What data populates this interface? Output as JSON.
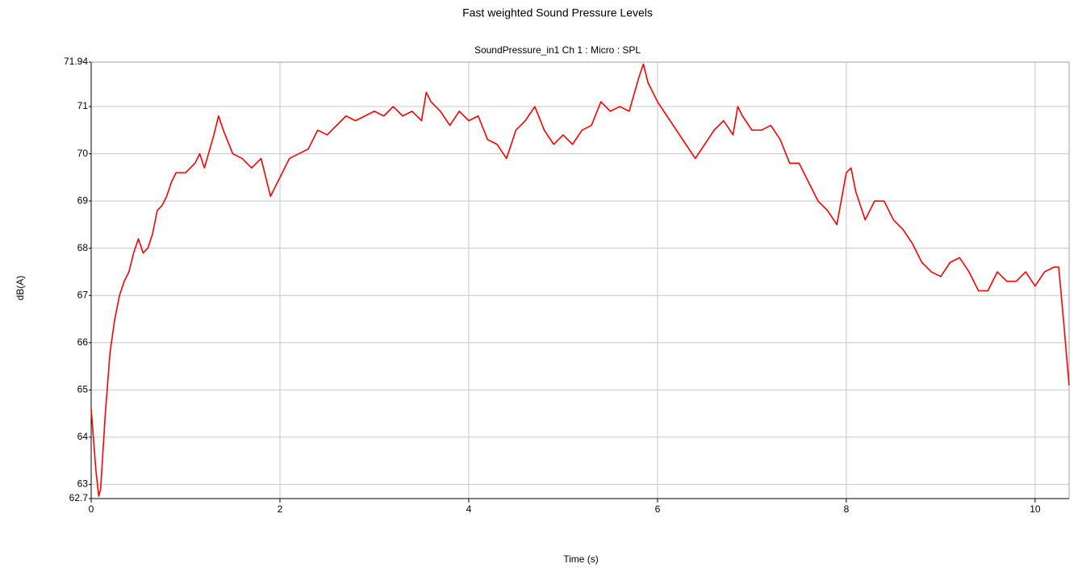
{
  "chart_data": {
    "type": "line",
    "title": "Fast weighted Sound Pressure Levels",
    "subtitle": "SoundPressure_in1  Ch 1 : Micro : SPL",
    "xlabel": "Time (s)",
    "ylabel": "dB(A)",
    "x": [
      0,
      0.05,
      0.08,
      0.1,
      0.15,
      0.2,
      0.25,
      0.3,
      0.35,
      0.4,
      0.45,
      0.5,
      0.55,
      0.6,
      0.65,
      0.7,
      0.75,
      0.8,
      0.85,
      0.9,
      1.0,
      1.1,
      1.15,
      1.2,
      1.3,
      1.35,
      1.4,
      1.5,
      1.6,
      1.7,
      1.8,
      1.9,
      2.0,
      2.1,
      2.2,
      2.3,
      2.4,
      2.5,
      2.6,
      2.7,
      2.8,
      2.9,
      3.0,
      3.1,
      3.2,
      3.3,
      3.4,
      3.5,
      3.55,
      3.6,
      3.7,
      3.8,
      3.9,
      4.0,
      4.1,
      4.2,
      4.3,
      4.4,
      4.5,
      4.6,
      4.7,
      4.8,
      4.9,
      5.0,
      5.1,
      5.2,
      5.3,
      5.4,
      5.5,
      5.6,
      5.7,
      5.8,
      5.85,
      5.9,
      6.0,
      6.1,
      6.2,
      6.3,
      6.4,
      6.5,
      6.6,
      6.7,
      6.8,
      6.85,
      6.9,
      7.0,
      7.1,
      7.2,
      7.3,
      7.4,
      7.5,
      7.6,
      7.7,
      7.8,
      7.9,
      8.0,
      8.05,
      8.1,
      8.2,
      8.3,
      8.4,
      8.5,
      8.6,
      8.7,
      8.8,
      8.9,
      9.0,
      9.1,
      9.2,
      9.3,
      9.4,
      9.5,
      9.6,
      9.7,
      9.8,
      9.9,
      10.0,
      10.1,
      10.2,
      10.25,
      10.3,
      10.36
    ],
    "series": [
      {
        "name": "SoundPressure_in1",
        "color": "#ff0000",
        "values": [
          64.6,
          63.3,
          62.75,
          62.9,
          64.5,
          65.8,
          66.5,
          67.0,
          67.3,
          67.5,
          67.9,
          68.2,
          67.9,
          68.0,
          68.3,
          68.8,
          68.9,
          69.1,
          69.4,
          69.6,
          69.6,
          69.8,
          70.0,
          69.7,
          70.4,
          70.8,
          70.5,
          70.0,
          69.9,
          69.7,
          69.9,
          69.1,
          69.5,
          69.9,
          70.0,
          70.1,
          70.5,
          70.4,
          70.6,
          70.8,
          70.7,
          70.8,
          70.9,
          70.8,
          71.0,
          70.8,
          70.9,
          70.7,
          71.3,
          71.1,
          70.9,
          70.6,
          70.9,
          70.7,
          70.8,
          70.3,
          70.2,
          69.9,
          70.5,
          70.7,
          71.0,
          70.5,
          70.2,
          70.4,
          70.2,
          70.5,
          70.6,
          71.1,
          70.9,
          71.0,
          70.9,
          71.6,
          71.9,
          71.5,
          71.1,
          70.8,
          70.5,
          70.2,
          69.9,
          70.2,
          70.5,
          70.7,
          70.4,
          71.0,
          70.8,
          70.5,
          70.5,
          70.6,
          70.3,
          69.8,
          69.8,
          69.4,
          69.0,
          68.8,
          68.5,
          69.6,
          69.7,
          69.2,
          68.6,
          69.0,
          69.0,
          68.6,
          68.4,
          68.1,
          67.7,
          67.5,
          67.4,
          67.7,
          67.8,
          67.5,
          67.1,
          67.1,
          67.5,
          67.3,
          67.3,
          67.5,
          67.2,
          67.5,
          67.6,
          67.6,
          66.5,
          65.1
        ]
      }
    ],
    "xlim": [
      0,
      10.36
    ],
    "xticks": [
      0,
      2,
      4,
      6,
      8,
      10
    ],
    "ylim": [
      62.7,
      71.94
    ],
    "yticks": [
      62.7,
      63,
      64,
      65,
      66,
      67,
      68,
      69,
      70,
      71,
      71.94
    ],
    "grid": true
  }
}
